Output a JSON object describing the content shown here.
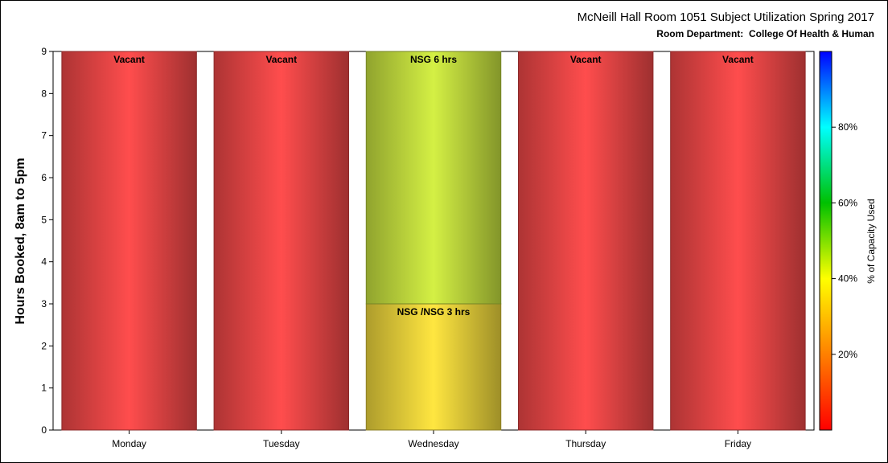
{
  "chart_data": {
    "type": "bar",
    "title": "McNeill Hall Room 1051 Subject Utilization Spring 2017",
    "subtitle": "Room Department:  College Of Health & Human",
    "ylabel": "Hours Booked, 8am to 5pm",
    "xlabel": "",
    "ylim": [
      0,
      9
    ],
    "yticks": [
      "0",
      "1",
      "2",
      "3",
      "4",
      "5",
      "6",
      "7",
      "8",
      "9"
    ],
    "categories": [
      "Monday",
      "Tuesday",
      "Wednesday",
      "Thursday",
      "Friday"
    ],
    "segments": [
      {
        "category": "Monday",
        "start": 0,
        "end": 9,
        "label": "Vacant",
        "color": "#ff4d4d"
      },
      {
        "category": "Tuesday",
        "start": 0,
        "end": 9,
        "label": "Vacant",
        "color": "#ff4d4d"
      },
      {
        "category": "Wednesday",
        "start": 0,
        "end": 3,
        "label": "NSG /NSG 3 hrs",
        "color": "#ffe640"
      },
      {
        "category": "Wednesday",
        "start": 3,
        "end": 9,
        "label": "NSG 6 hrs",
        "color": "#d4f044"
      },
      {
        "category": "Thursday",
        "start": 0,
        "end": 9,
        "label": "Vacant",
        "color": "#ff4d4d"
      },
      {
        "category": "Friday",
        "start": 0,
        "end": 9,
        "label": "Vacant",
        "color": "#ff4d4d"
      }
    ],
    "colorbar": {
      "title": "% of Capacity Used",
      "ticks": [
        {
          "value": 20,
          "label": "20%"
        },
        {
          "value": 40,
          "label": "40%"
        },
        {
          "value": 60,
          "label": "60%"
        },
        {
          "value": 80,
          "label": "80%"
        }
      ],
      "range": [
        0,
        100
      ],
      "colors": [
        "#ff0000",
        "#ff8000",
        "#ffff00",
        "#00c000",
        "#00ffff",
        "#0000ff"
      ]
    }
  }
}
